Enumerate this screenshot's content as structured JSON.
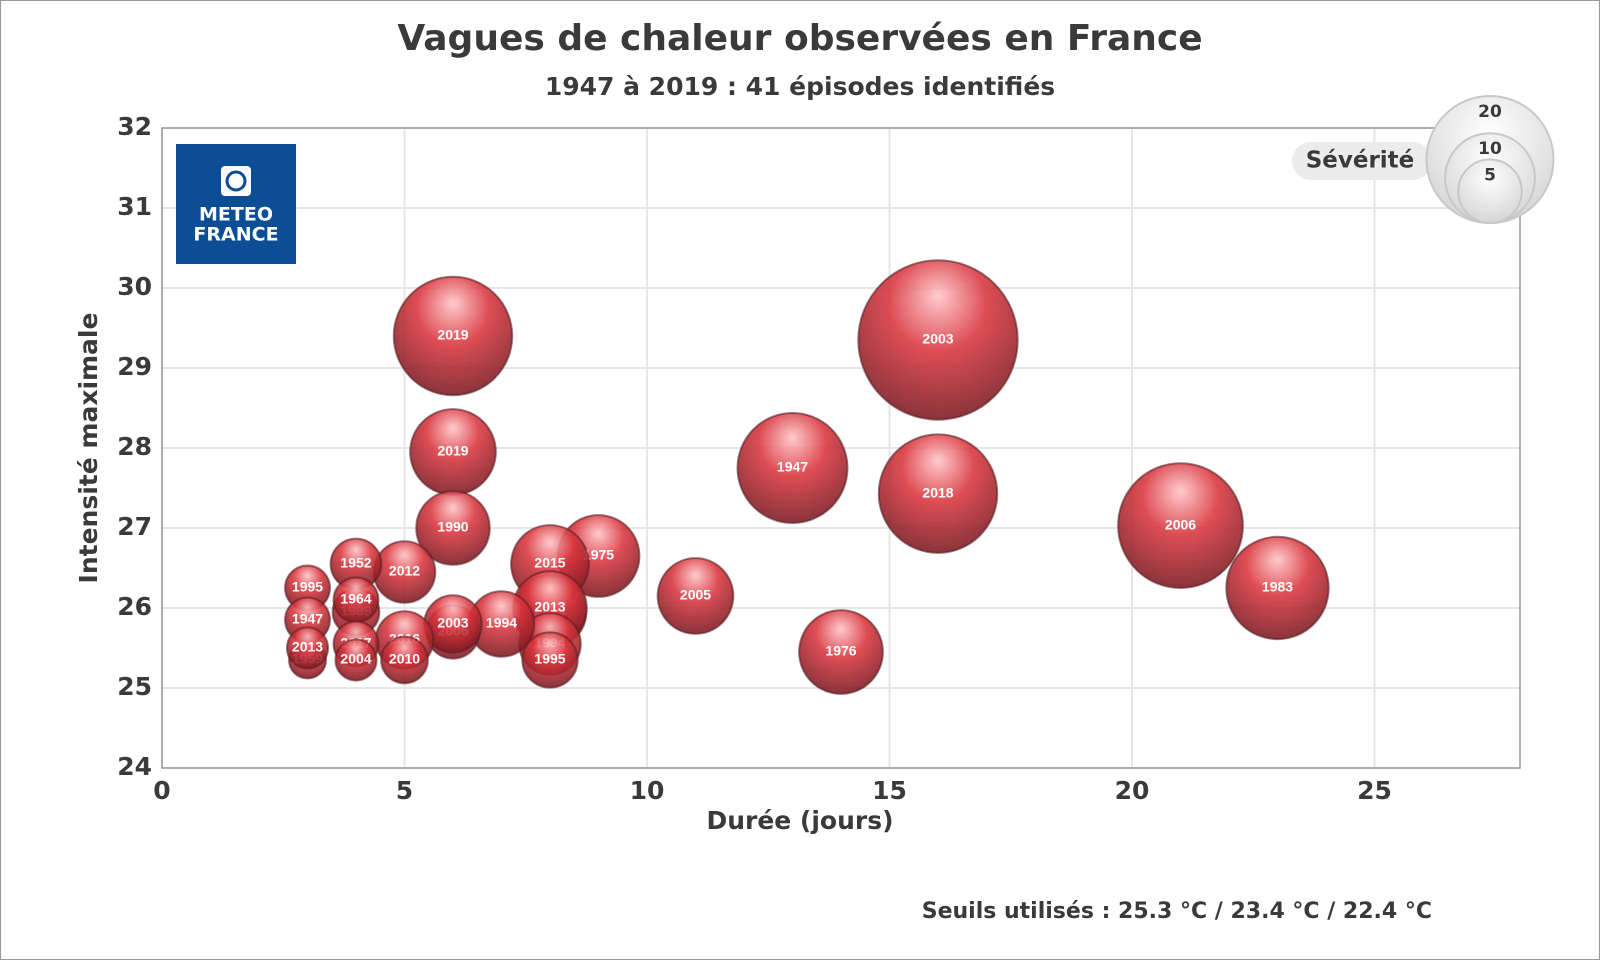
{
  "chart_data": {
    "type": "bubble",
    "title": "Vagues de chaleur observées en France",
    "subtitle": "1947 à 2019 : 41 épisodes identifiés",
    "x_label": "Durée (jours)",
    "y_label": "Intensité maximale",
    "footnote": "Seuils utilisés : 25.3 °C / 23.4 °C / 22.4 °C",
    "logo": [
      "METEO",
      "FRANCE"
    ],
    "size_legend": {
      "title": "Sévérité",
      "values": [
        20,
        10,
        5
      ]
    },
    "color": "#d9343c",
    "grid": true,
    "xlim": [
      0,
      28
    ],
    "xticks": [
      0,
      5,
      10,
      15,
      20,
      25
    ],
    "ylim": [
      24,
      32
    ],
    "yticks": [
      24,
      25,
      26,
      27,
      28,
      29,
      30,
      31,
      32
    ],
    "labels": [
      "2003",
      "2006",
      "2019",
      "2018",
      "1947",
      "1983",
      "2019",
      "1976",
      "1975",
      "2015",
      "2005",
      "1990",
      "2019",
      "2013",
      "1994",
      "2012",
      "1994",
      "1995",
      "2006",
      "2003",
      "2016",
      "1952",
      "2010",
      "1989",
      "1964",
      "1995",
      "1947",
      "2017",
      "2004",
      "1959",
      "2013"
    ],
    "x": [
      16,
      21,
      6,
      16,
      13,
      23,
      6,
      14,
      9,
      8,
      11,
      6,
      8,
      8,
      8,
      5,
      7,
      8,
      6,
      6,
      5,
      4,
      5,
      4,
      4,
      3,
      3,
      4,
      4,
      3,
      3
    ],
    "values": [
      29.35,
      27.03,
      29.4,
      27.43,
      27.75,
      26.25,
      27.95,
      25.45,
      26.65,
      26.55,
      26.15,
      27.0,
      25.95,
      26.0,
      25.55,
      26.45,
      25.8,
      25.35,
      25.7,
      25.8,
      25.6,
      26.55,
      25.35,
      25.95,
      26.1,
      26.25,
      25.85,
      25.55,
      25.35,
      25.35,
      25.5
    ],
    "sizes": [
      31.5,
      19.3,
      17.4,
      17.4,
      15,
      13,
      9.1,
      8.7,
      8.3,
      7.5,
      7.1,
      6.7,
      6.5,
      6.7,
      4.7,
      4.7,
      5.3,
      3.8,
      3.5,
      4.1,
      4.1,
      3.2,
      2.7,
      2.7,
      2.5,
      2.5,
      2.5,
      2.5,
      2.1,
      1.7,
      2.1
    ]
  }
}
